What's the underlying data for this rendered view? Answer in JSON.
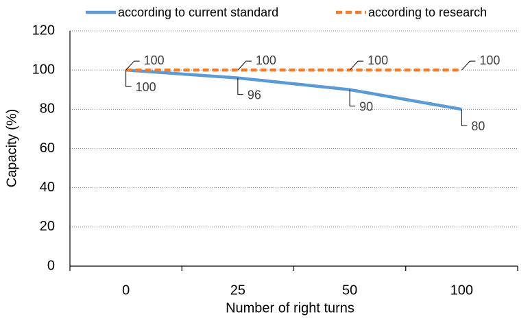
{
  "chart_data": {
    "type": "line",
    "x_label": "Number of right turns",
    "y_label": "Capacity (%)",
    "categories": [
      "0",
      "25",
      "50",
      "100"
    ],
    "series": [
      {
        "name": "according to current standard",
        "color": "#5b9bd5",
        "dashed": false,
        "values": [
          100,
          96,
          90,
          80
        ]
      },
      {
        "name": "according to research",
        "color": "#ed7d31",
        "dashed": true,
        "values": [
          100,
          100,
          100,
          100
        ]
      }
    ],
    "ylim": [
      0,
      120
    ],
    "yticks": [
      0,
      20,
      40,
      60,
      80,
      100,
      120
    ],
    "grid": true,
    "legend": "top"
  }
}
